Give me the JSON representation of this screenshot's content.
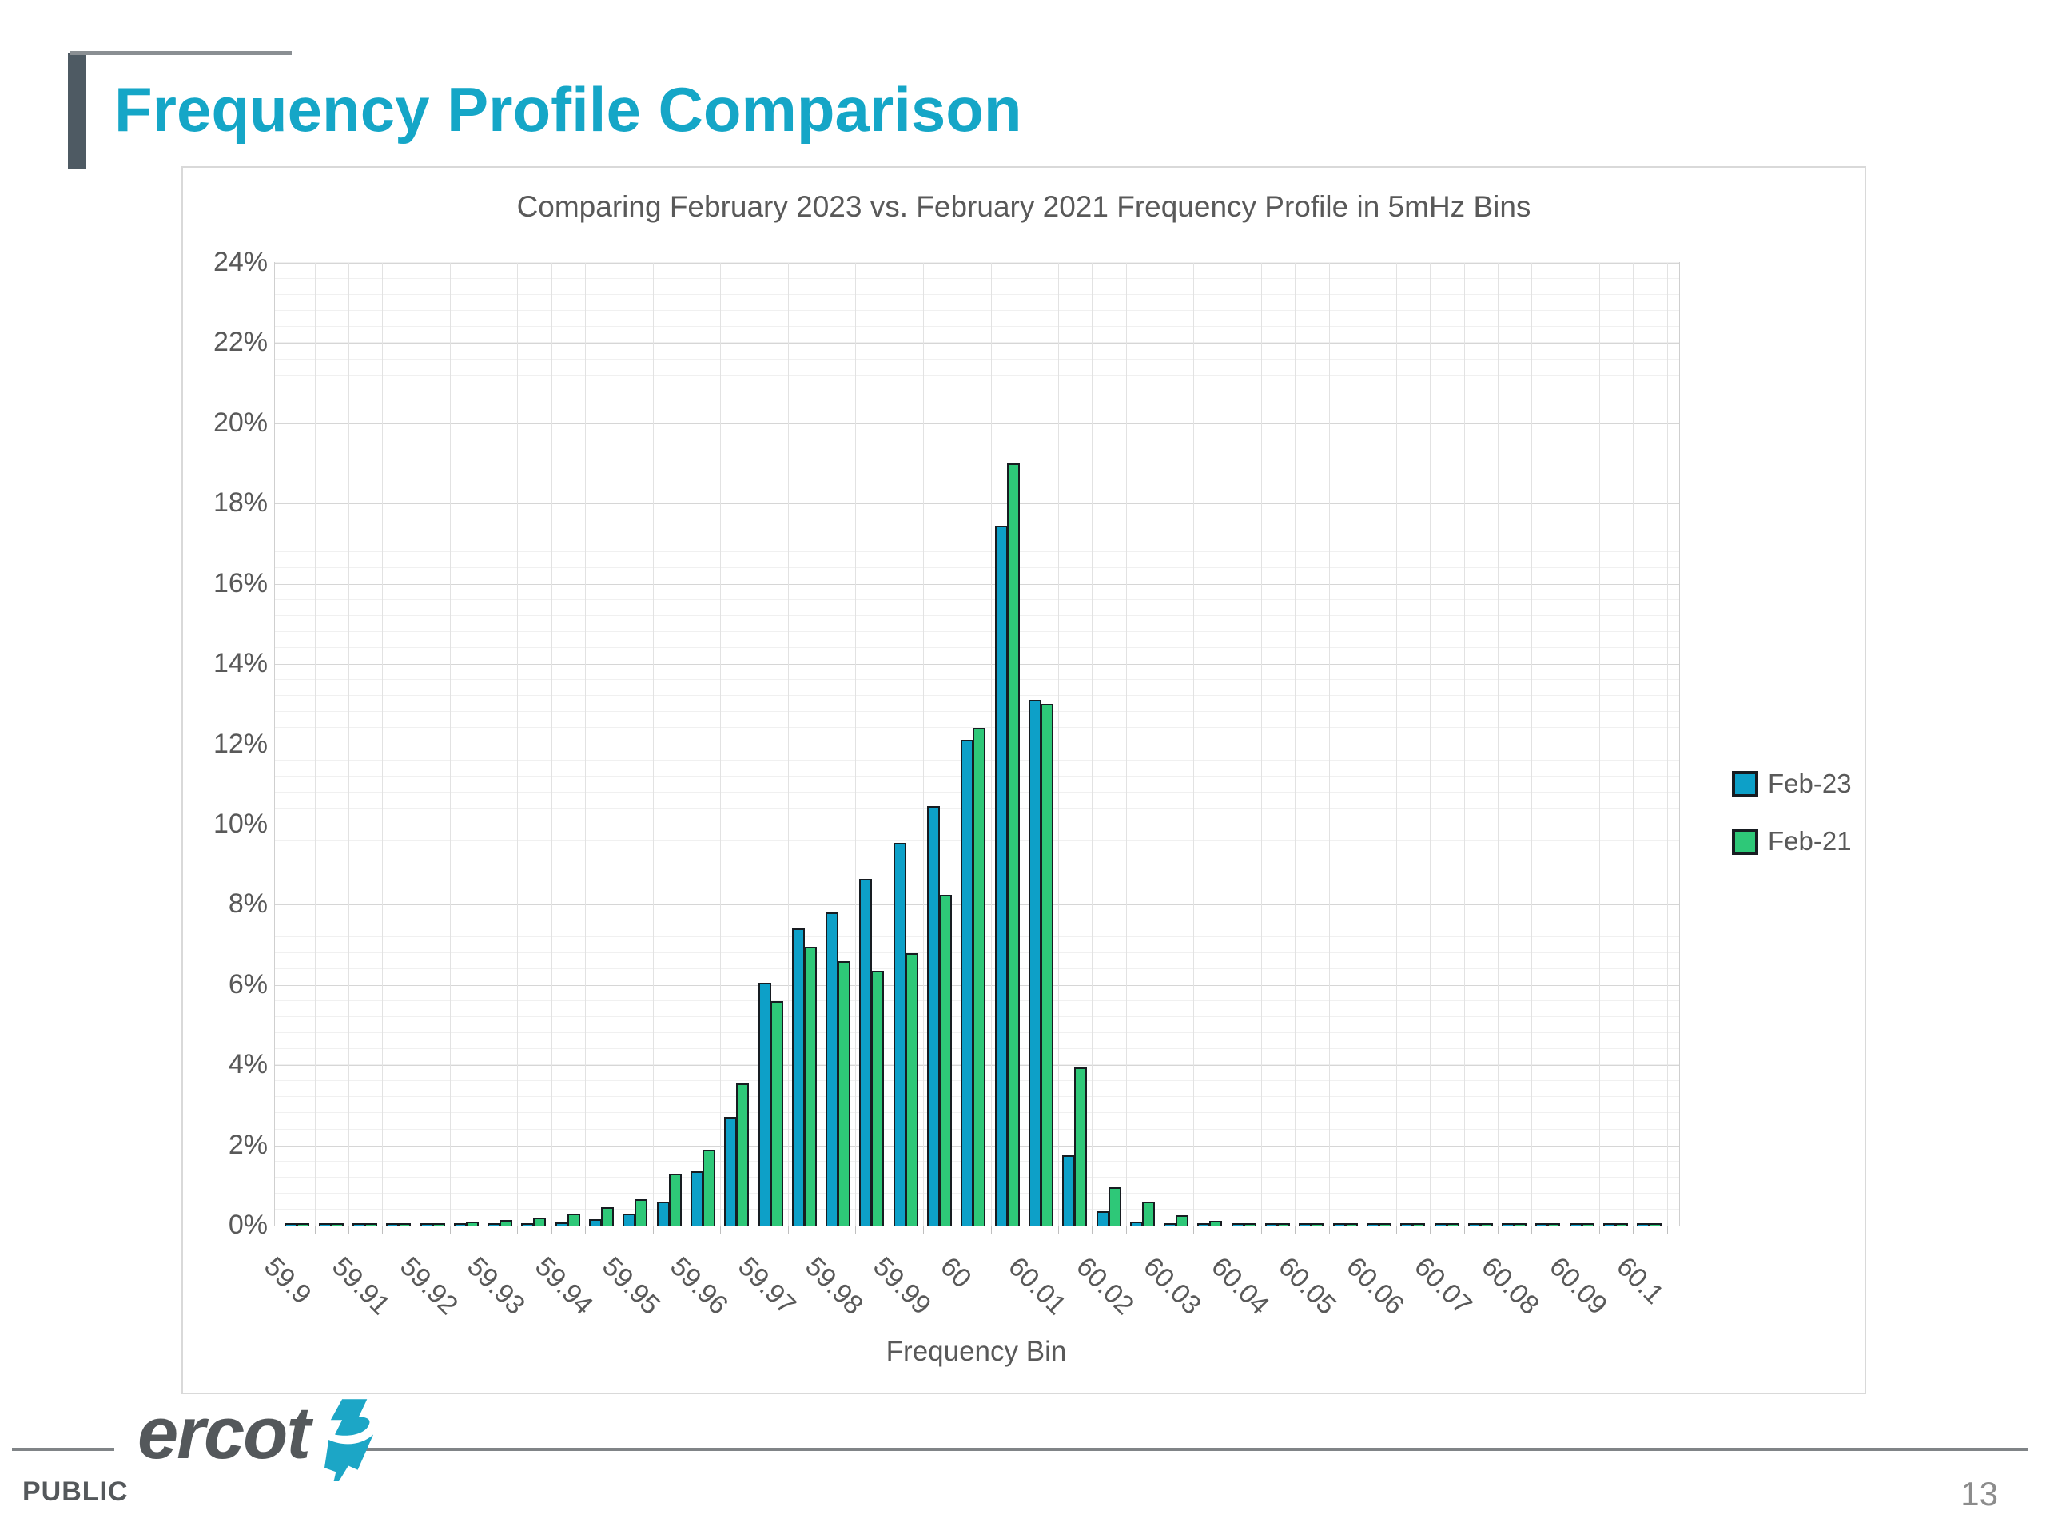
{
  "slide": {
    "title": "Frequency Profile Comparison",
    "footer": {
      "classification": "PUBLIC",
      "page_number": "13",
      "brand": "ercot"
    }
  },
  "colors": {
    "title_teal": "#15a6c7",
    "feb23_blue": "#0da0c8",
    "feb21_green": "#2ec878",
    "bar_outline": "#171c21",
    "axis_text": "#595959",
    "deco_slate": "#4e5a63"
  },
  "chart_data": {
    "type": "bar",
    "title": "Comparing February 2023 vs. February 2021 Frequency Profile in 5mHz Bins",
    "xlabel": "Frequency Bin",
    "ylabel": "",
    "ylim": [
      0,
      24
    ],
    "y_tick_step_pct": 2,
    "y_minor_step_pct": 0.4,
    "y_tick_labels": [
      "0%",
      "2%",
      "4%",
      "6%",
      "8%",
      "10%",
      "12%",
      "14%",
      "16%",
      "18%",
      "20%",
      "22%",
      "24%"
    ],
    "x_tick_labels": [
      "59.9",
      "59.91",
      "59.92",
      "59.93",
      "59.94",
      "59.95",
      "59.96",
      "59.97",
      "59.98",
      "59.99",
      "60",
      "60.01",
      "60.02",
      "60.03",
      "60.04",
      "60.05",
      "60.06",
      "60.07",
      "60.08",
      "60.09",
      "60.1"
    ],
    "bin_width_hz": 0.005,
    "categories": [
      59.9,
      59.905,
      59.91,
      59.915,
      59.92,
      59.925,
      59.93,
      59.935,
      59.94,
      59.945,
      59.95,
      59.955,
      59.96,
      59.965,
      59.97,
      59.975,
      59.98,
      59.985,
      59.99,
      59.995,
      60.0,
      60.005,
      60.01,
      60.015,
      60.02,
      60.025,
      60.03,
      60.035,
      60.04,
      60.045,
      60.05,
      60.055,
      60.06,
      60.065,
      60.07,
      60.075,
      60.08,
      60.085,
      60.09,
      60.095,
      60.1
    ],
    "series": [
      {
        "name": "Feb-23",
        "color": "#0da0c8",
        "values": [
          0.05,
          0.02,
          0.02,
          0.02,
          0.03,
          0.03,
          0.04,
          0.05,
          0.08,
          0.15,
          0.3,
          0.6,
          1.35,
          2.7,
          6.05,
          7.4,
          7.8,
          8.65,
          9.55,
          10.45,
          12.1,
          17.45,
          13.1,
          1.75,
          0.35,
          0.1,
          0.05,
          0.03,
          0.04,
          0.03,
          0.02,
          0.02,
          0.02,
          0.02,
          0.02,
          0.02,
          0.02,
          0.02,
          0.02,
          0.02,
          0.02
        ]
      },
      {
        "name": "Feb-21",
        "color": "#2ec878",
        "values": [
          0.03,
          0.02,
          0.03,
          0.04,
          0.06,
          0.1,
          0.14,
          0.2,
          0.3,
          0.45,
          0.65,
          1.3,
          1.9,
          3.55,
          5.6,
          6.95,
          6.6,
          6.35,
          6.8,
          8.25,
          12.4,
          19.0,
          13.0,
          3.95,
          0.95,
          0.6,
          0.25,
          0.12,
          0.06,
          0.04,
          0.03,
          0.02,
          0.02,
          0.02,
          0.02,
          0.02,
          0.02,
          0.02,
          0.02,
          0.02,
          0.02
        ]
      }
    ],
    "legend_position": "right",
    "grid": true
  }
}
